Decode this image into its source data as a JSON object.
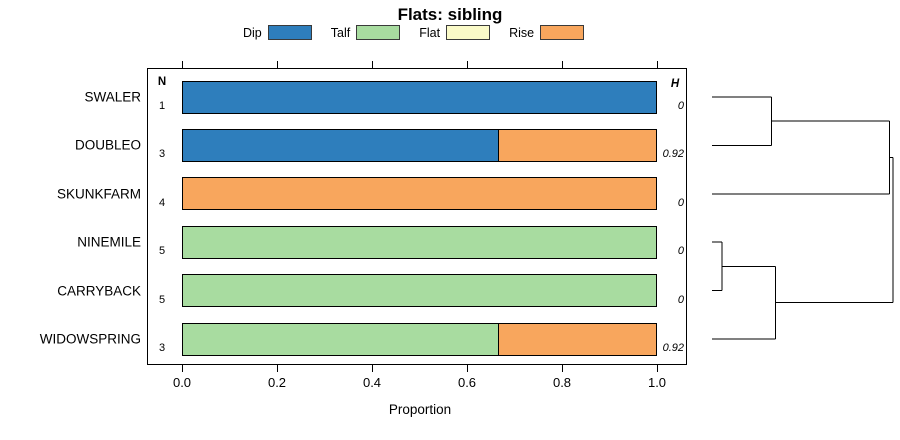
{
  "chart_data": {
    "type": "bar",
    "variant": "horizontal-stacked-proportion-with-dendrogram",
    "title": "Flats: sibling",
    "xlabel": "Proportion",
    "xlim": [
      0,
      1
    ],
    "xticks": [
      {
        "value": 0.0,
        "label": "0.0"
      },
      {
        "value": 0.2,
        "label": "0.2"
      },
      {
        "value": 0.4,
        "label": "0.4"
      },
      {
        "value": 0.6,
        "label": "0.6"
      },
      {
        "value": 0.8,
        "label": "0.8"
      },
      {
        "value": 1.0,
        "label": "1.0"
      }
    ],
    "legend": [
      {
        "label": "Dip",
        "color": "#2E7EBC"
      },
      {
        "label": "Talf",
        "color": "#A8DCA0"
      },
      {
        "label": "Flat",
        "color": "#FAFAC8"
      },
      {
        "label": "Rise",
        "color": "#F8A65D"
      }
    ],
    "columns": {
      "n_header": "N",
      "h_header": "H"
    },
    "rows": [
      {
        "label": "SWALER",
        "n": "1",
        "h": "0",
        "segments": [
          {
            "category": "Dip",
            "value": 1.0
          }
        ]
      },
      {
        "label": "DOUBLEO",
        "n": "3",
        "h": "0.92",
        "segments": [
          {
            "category": "Dip",
            "value": 0.667
          },
          {
            "category": "Rise",
            "value": 0.333
          }
        ]
      },
      {
        "label": "SKUNKFARM",
        "n": "4",
        "h": "0",
        "segments": [
          {
            "category": "Rise",
            "value": 1.0
          }
        ]
      },
      {
        "label": "NINEMILE",
        "n": "5",
        "h": "0",
        "segments": [
          {
            "category": "Talf",
            "value": 1.0
          }
        ]
      },
      {
        "label": "CARRYBACK",
        "n": "5",
        "h": "0",
        "segments": [
          {
            "category": "Talf",
            "value": 1.0
          }
        ]
      },
      {
        "label": "WIDOWSPRING",
        "n": "3",
        "h": "0.92",
        "segments": [
          {
            "category": "Talf",
            "value": 0.667
          },
          {
            "category": "Rise",
            "value": 0.333
          }
        ]
      }
    ],
    "dendrogram": {
      "merges": [
        {
          "a": {
            "leaf": 0
          },
          "b": {
            "leaf": 1
          },
          "height": 0.33
        },
        {
          "a": {
            "merge": 0
          },
          "b": {
            "leaf": 2
          },
          "height": 0.98
        },
        {
          "a": {
            "leaf": 3
          },
          "b": {
            "leaf": 4
          },
          "height": 0.055
        },
        {
          "a": {
            "merge": 2
          },
          "b": {
            "leaf": 5
          },
          "height": 0.35
        },
        {
          "a": {
            "merge": 1
          },
          "b": {
            "merge": 3
          },
          "height": 1.0
        }
      ]
    }
  }
}
